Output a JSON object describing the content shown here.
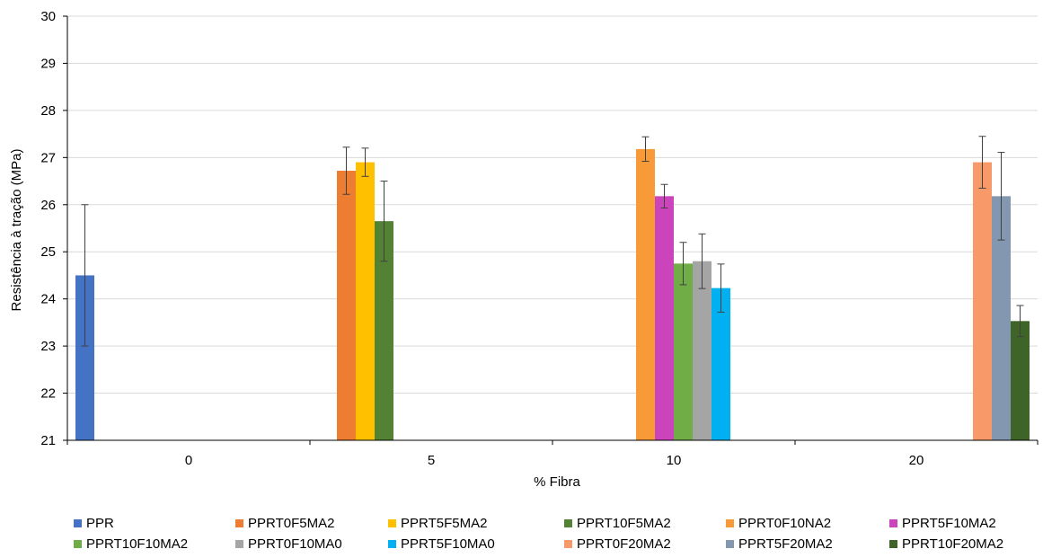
{
  "chart_data": {
    "type": "bar",
    "xlabel": "% Fibra",
    "ylabel": "Resistência à tração (MPa)",
    "ylim": [
      21,
      30
    ],
    "yticks": [
      21,
      22,
      23,
      24,
      25,
      26,
      27,
      28,
      29,
      30
    ],
    "grid": "horizontal",
    "legend_position": "bottom",
    "categories": [
      "0",
      "5",
      "10",
      "20"
    ],
    "series": [
      {
        "name": "PPR",
        "color": "#4472C4",
        "category": "0",
        "value": 24.5,
        "err_low": 23.0,
        "err_high": 26.0
      },
      {
        "name": "PPRT0F5MA2",
        "color": "#ED7D31",
        "category": "5",
        "value": 26.72,
        "err_low": 26.22,
        "err_high": 27.22
      },
      {
        "name": "PPRT5F5MA2",
        "color": "#FFC000",
        "category": "5",
        "value": 26.9,
        "err_low": 26.6,
        "err_high": 27.2
      },
      {
        "name": "PPRT10F5MA2",
        "color": "#548235",
        "category": "5",
        "value": 25.65,
        "err_low": 24.8,
        "err_high": 26.5
      },
      {
        "name": "PPRT0F10NA2",
        "color": "#F79A37",
        "category": "10",
        "value": 27.18,
        "err_low": 26.92,
        "err_high": 27.44
      },
      {
        "name": "PPRT5F10MA2",
        "color": "#CC44BB",
        "category": "10",
        "value": 26.18,
        "err_low": 25.93,
        "err_high": 26.43
      },
      {
        "name": "PPRT10F10MA2",
        "color": "#70AD47",
        "category": "10",
        "value": 24.75,
        "err_low": 24.3,
        "err_high": 25.2
      },
      {
        "name": "PPRT0F10MA0",
        "color": "#A5A5A5",
        "category": "10",
        "value": 24.8,
        "err_low": 24.22,
        "err_high": 25.38
      },
      {
        "name": "PPRT5F10MA0",
        "color": "#00B0F0",
        "category": "10",
        "value": 24.23,
        "err_low": 23.72,
        "err_high": 24.74
      },
      {
        "name": "PPRT0F20MA2",
        "color": "#F79968",
        "category": "20",
        "value": 26.9,
        "err_low": 26.35,
        "err_high": 27.45
      },
      {
        "name": "PPRT5F20MA2",
        "color": "#8497B0",
        "category": "20",
        "value": 26.18,
        "err_low": 25.25,
        "err_high": 27.11
      },
      {
        "name": "PPRT10F20MA2",
        "color": "#3F6428",
        "category": "20",
        "value": 23.53,
        "err_low": 23.2,
        "err_high": 23.86
      }
    ]
  }
}
